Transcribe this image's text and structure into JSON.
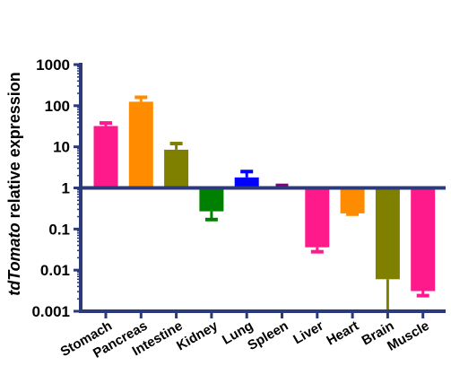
{
  "chart_data": {
    "type": "bar",
    "scale": "log10",
    "baseline": 1,
    "ylim": [
      0.001,
      1000
    ],
    "ytick_labels": [
      "0.001",
      "0.01",
      "0.1",
      "1",
      "10",
      "100",
      "1000"
    ],
    "ytick_values": [
      0.001,
      0.01,
      0.1,
      1,
      10,
      100,
      1000
    ],
    "ylabel_italic": "tdTomato",
    "ylabel_rest": " relative expression",
    "categories": [
      "Stomach",
      "Pancreas",
      "Intestine",
      "Kidney",
      "Lung",
      "Spleen",
      "Liver",
      "Heart",
      "Brain",
      "Muscle"
    ],
    "values": [
      32,
      125,
      8.5,
      0.27,
      1.8,
      1.0,
      0.036,
      0.24,
      0.006,
      0.0031
    ],
    "error_tips": [
      38,
      160,
      12,
      0.17,
      2.5,
      1.15,
      0.028,
      0.23,
      0.001,
      0.0024
    ],
    "colors": [
      "#ff1a8c",
      "#ff8c00",
      "#808000",
      "#008000",
      "#0000ff",
      "#800080",
      "#ff1a8c",
      "#ff8c00",
      "#808000",
      "#ff1a8c"
    ],
    "axis_color": "#2d3a7a",
    "grid": false,
    "legend": "none"
  }
}
